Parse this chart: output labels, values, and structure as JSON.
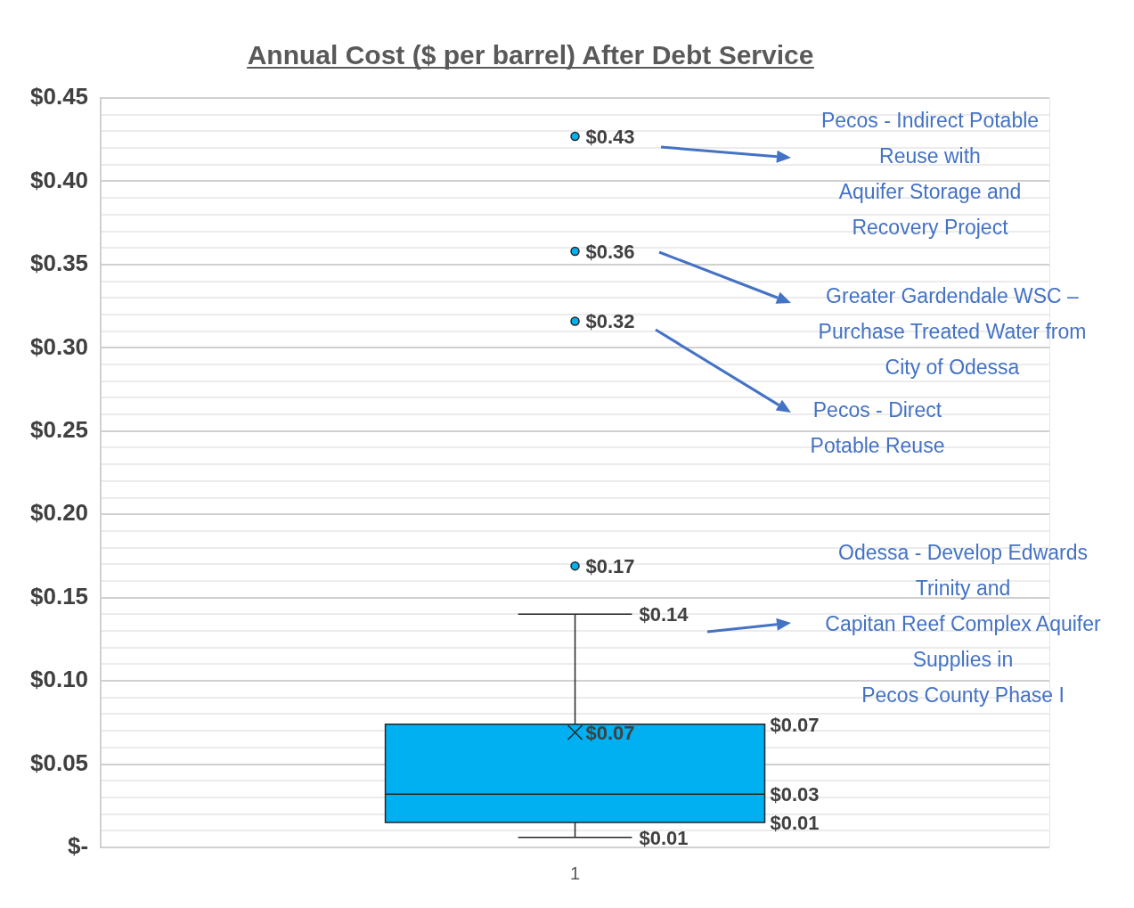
{
  "chart_data": {
    "type": "box",
    "title": "Annual Cost ($ per barrel) After Debt Service",
    "categories": [
      "1"
    ],
    "color": "#00b0f0",
    "boxes": [
      {
        "low": 0.006,
        "q1": 0.015,
        "median": 0.032,
        "q3": 0.074,
        "high": 0.14,
        "mean": 0.069,
        "outliers": [
          0.169,
          0.316,
          0.358,
          0.427
        ]
      }
    ],
    "ylim": [
      0,
      0.45
    ],
    "yticks": [
      {
        "value": 0,
        "label": "$-"
      },
      {
        "value": 0.01,
        "label": null
      },
      {
        "value": 0.02,
        "label": null
      },
      {
        "value": 0.03,
        "label": null
      },
      {
        "value": 0.04,
        "label": null
      },
      {
        "value": 0.05,
        "label": "$0.05"
      },
      {
        "value": 0.06,
        "label": null
      },
      {
        "value": 0.07,
        "label": null
      },
      {
        "value": 0.08,
        "label": null
      },
      {
        "value": 0.09,
        "label": null
      },
      {
        "value": 0.1,
        "label": "$0.10"
      },
      {
        "value": 0.11,
        "label": null
      },
      {
        "value": 0.12,
        "label": null
      },
      {
        "value": 0.13,
        "label": null
      },
      {
        "value": 0.14,
        "label": null
      },
      {
        "value": 0.15,
        "label": "$0.15"
      },
      {
        "value": 0.16,
        "label": null
      },
      {
        "value": 0.17,
        "label": null
      },
      {
        "value": 0.18,
        "label": null
      },
      {
        "value": 0.19,
        "label": null
      },
      {
        "value": 0.2,
        "label": "$0.20"
      },
      {
        "value": 0.21,
        "label": null
      },
      {
        "value": 0.22,
        "label": null
      },
      {
        "value": 0.23,
        "label": null
      },
      {
        "value": 0.24,
        "label": null
      },
      {
        "value": 0.25,
        "label": "$0.25"
      },
      {
        "value": 0.26,
        "label": null
      },
      {
        "value": 0.27,
        "label": null
      },
      {
        "value": 0.28,
        "label": null
      },
      {
        "value": 0.29,
        "label": null
      },
      {
        "value": 0.3,
        "label": "$0.30"
      },
      {
        "value": 0.31,
        "label": null
      },
      {
        "value": 0.32,
        "label": null
      },
      {
        "value": 0.33,
        "label": null
      },
      {
        "value": 0.34,
        "label": null
      },
      {
        "value": 0.35,
        "label": "$0.35"
      },
      {
        "value": 0.36,
        "label": null
      },
      {
        "value": 0.37,
        "label": null
      },
      {
        "value": 0.38,
        "label": null
      },
      {
        "value": 0.39,
        "label": null
      },
      {
        "value": 0.4,
        "label": "$0.40"
      },
      {
        "value": 0.41,
        "label": null
      },
      {
        "value": 0.42,
        "label": null
      },
      {
        "value": 0.43,
        "label": null
      },
      {
        "value": 0.44,
        "label": null
      },
      {
        "value": 0.45,
        "label": "$0.45"
      }
    ],
    "grid": true,
    "annotations": [
      "$0.43",
      "$0.36",
      "$0.32",
      "$0.17",
      "$0.14",
      "$0.07",
      "$0.07",
      "$0.03",
      "$0.01",
      "$0.01",
      "Pecos - Indirect Potable\nReuse with\nAquifer Storage and\nRecovery Project",
      "Greater Gardendale WSC –\nPurchase Treated Water from\nCity of Odessa",
      "Pecos - Direct\nPotable Reuse",
      "Odessa - Develop Edwards\nTrinity and\nCapitan Reef Complex Aquifer\nSupplies in\nPecos County Phase I"
    ]
  }
}
